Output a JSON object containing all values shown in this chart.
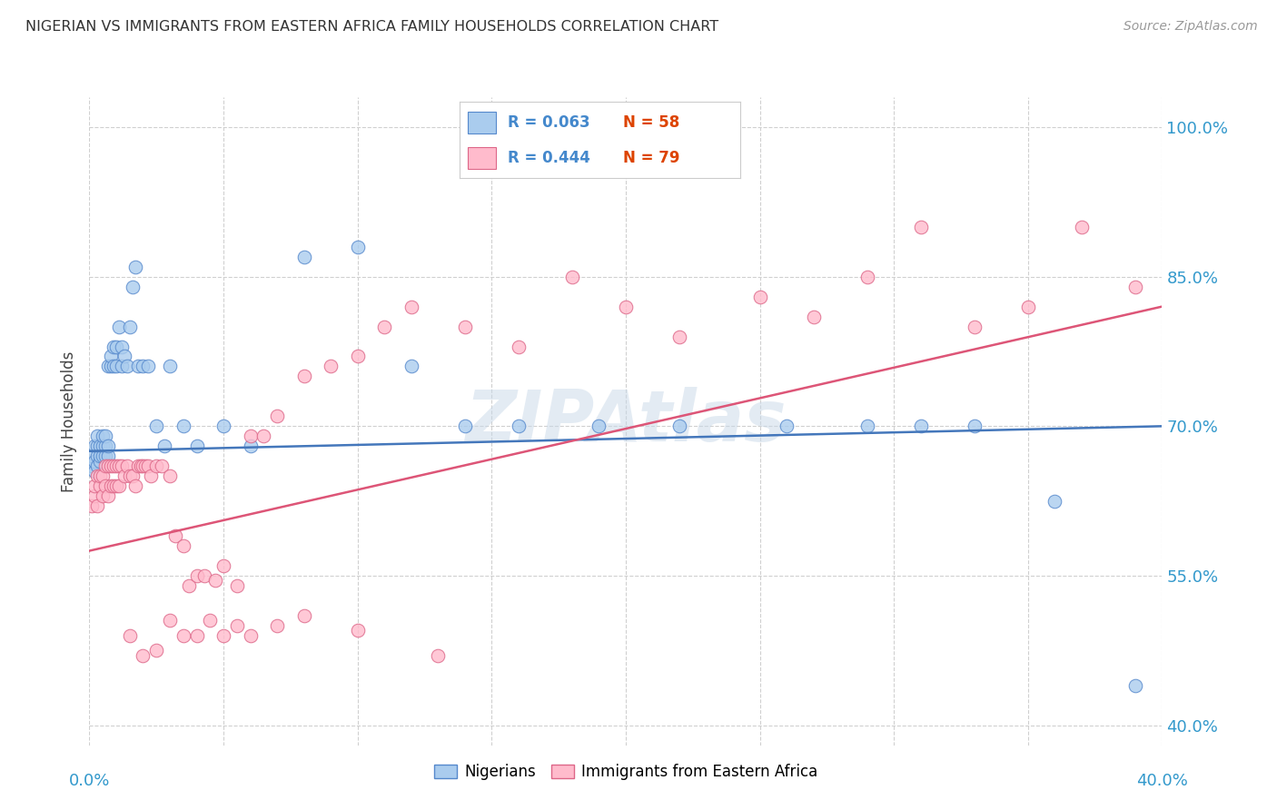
{
  "title": "NIGERIAN VS IMMIGRANTS FROM EASTERN AFRICA FAMILY HOUSEHOLDS CORRELATION CHART",
  "source": "Source: ZipAtlas.com",
  "ylabel": "Family Households",
  "ytick_labels": [
    "100.0%",
    "85.0%",
    "70.0%",
    "55.0%",
    "40.0%"
  ],
  "ytick_values": [
    1.0,
    0.85,
    0.7,
    0.55,
    0.4
  ],
  "xtick_values": [
    0.0,
    0.05,
    0.1,
    0.15,
    0.2,
    0.25,
    0.3,
    0.35,
    0.4
  ],
  "xmin": 0.0,
  "xmax": 0.4,
  "ymin": 0.38,
  "ymax": 1.03,
  "nigerian_color_face": "#aaccee",
  "nigerian_color_edge": "#5588cc",
  "eastern_color_face": "#ffbbcc",
  "eastern_color_edge": "#dd6688",
  "nigerian_line_color": "#4477bb",
  "eastern_line_color": "#dd5577",
  "watermark": "ZIPAtlas",
  "watermark_color": "#c8d8e8",
  "legend_R1": "R = 0.063",
  "legend_N1": "N = 58",
  "legend_R2": "R = 0.444",
  "legend_N2": "N = 79",
  "legend_R_color": "#4488cc",
  "legend_N_color": "#dd4400",
  "nigerian_x": [
    0.001,
    0.001,
    0.002,
    0.002,
    0.002,
    0.003,
    0.003,
    0.003,
    0.003,
    0.004,
    0.004,
    0.004,
    0.005,
    0.005,
    0.005,
    0.006,
    0.006,
    0.006,
    0.007,
    0.007,
    0.007,
    0.008,
    0.008,
    0.009,
    0.009,
    0.01,
    0.01,
    0.011,
    0.012,
    0.012,
    0.013,
    0.014,
    0.015,
    0.016,
    0.017,
    0.018,
    0.02,
    0.022,
    0.025,
    0.028,
    0.03,
    0.035,
    0.04,
    0.05,
    0.06,
    0.08,
    0.1,
    0.12,
    0.14,
    0.16,
    0.19,
    0.22,
    0.26,
    0.29,
    0.31,
    0.33,
    0.36,
    0.39
  ],
  "nigerian_y": [
    0.66,
    0.67,
    0.655,
    0.665,
    0.68,
    0.66,
    0.67,
    0.68,
    0.69,
    0.665,
    0.67,
    0.68,
    0.67,
    0.68,
    0.69,
    0.67,
    0.68,
    0.69,
    0.67,
    0.68,
    0.76,
    0.76,
    0.77,
    0.76,
    0.78,
    0.76,
    0.78,
    0.8,
    0.76,
    0.78,
    0.77,
    0.76,
    0.8,
    0.84,
    0.86,
    0.76,
    0.76,
    0.76,
    0.7,
    0.68,
    0.76,
    0.7,
    0.68,
    0.7,
    0.68,
    0.87,
    0.88,
    0.76,
    0.7,
    0.7,
    0.7,
    0.7,
    0.7,
    0.7,
    0.7,
    0.7,
    0.625,
    0.44
  ],
  "eastern_x": [
    0.001,
    0.002,
    0.002,
    0.003,
    0.003,
    0.004,
    0.004,
    0.005,
    0.005,
    0.006,
    0.006,
    0.007,
    0.007,
    0.008,
    0.008,
    0.009,
    0.009,
    0.01,
    0.01,
    0.011,
    0.011,
    0.012,
    0.013,
    0.014,
    0.015,
    0.016,
    0.017,
    0.018,
    0.019,
    0.02,
    0.021,
    0.022,
    0.023,
    0.025,
    0.027,
    0.03,
    0.032,
    0.035,
    0.037,
    0.04,
    0.043,
    0.047,
    0.05,
    0.055,
    0.06,
    0.065,
    0.07,
    0.08,
    0.09,
    0.1,
    0.11,
    0.12,
    0.14,
    0.16,
    0.18,
    0.2,
    0.22,
    0.25,
    0.27,
    0.29,
    0.31,
    0.33,
    0.35,
    0.37,
    0.39,
    0.015,
    0.02,
    0.025,
    0.03,
    0.035,
    0.04,
    0.045,
    0.05,
    0.055,
    0.06,
    0.07,
    0.08,
    0.1,
    0.13
  ],
  "eastern_y": [
    0.62,
    0.63,
    0.64,
    0.62,
    0.65,
    0.64,
    0.65,
    0.63,
    0.65,
    0.64,
    0.66,
    0.63,
    0.66,
    0.64,
    0.66,
    0.64,
    0.66,
    0.64,
    0.66,
    0.64,
    0.66,
    0.66,
    0.65,
    0.66,
    0.65,
    0.65,
    0.64,
    0.66,
    0.66,
    0.66,
    0.66,
    0.66,
    0.65,
    0.66,
    0.66,
    0.65,
    0.59,
    0.58,
    0.54,
    0.55,
    0.55,
    0.545,
    0.56,
    0.54,
    0.69,
    0.69,
    0.71,
    0.75,
    0.76,
    0.77,
    0.8,
    0.82,
    0.8,
    0.78,
    0.85,
    0.82,
    0.79,
    0.83,
    0.81,
    0.85,
    0.9,
    0.8,
    0.82,
    0.9,
    0.84,
    0.49,
    0.47,
    0.475,
    0.505,
    0.49,
    0.49,
    0.505,
    0.49,
    0.5,
    0.49,
    0.5,
    0.51,
    0.495,
    0.47
  ]
}
